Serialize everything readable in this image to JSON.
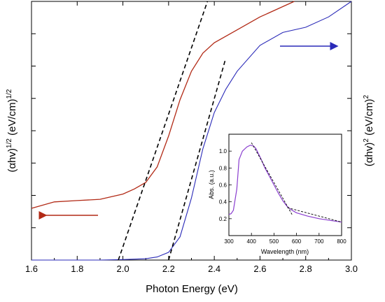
{
  "chart_data": [
    {
      "type": "line",
      "xlabel": "Photon Energy (eV)",
      "ylabel_left": "(αhv)",
      "ylabel_left_exp": "1/2",
      "ylabel_left_unit": "(eV/cm)",
      "ylabel_left_unit_exp": "1/2",
      "ylabel_right": "(αhv)",
      "ylabel_right_exp": "2",
      "ylabel_right_unit": "(eV/cm)",
      "ylabel_right_unit_exp": "2",
      "xlim": [
        1.6,
        3.0
      ],
      "x_ticks": [
        "1.6",
        "1.8",
        "2.0",
        "2.2",
        "2.4",
        "2.6",
        "2.8",
        "3.0"
      ],
      "y_ticks_labeled": false,
      "grid": false,
      "series": [
        {
          "axis": "left",
          "color": "#b22a16",
          "arrow_direction": "left",
          "points": [
            [
              1.6,
              0.2
            ],
            [
              1.7,
              0.225
            ],
            [
              1.8,
              0.23
            ],
            [
              1.9,
              0.235
            ],
            [
              1.95,
              0.245
            ],
            [
              2.0,
              0.255
            ],
            [
              2.05,
              0.275
            ],
            [
              2.1,
              0.3
            ],
            [
              2.15,
              0.36
            ],
            [
              2.2,
              0.48
            ],
            [
              2.25,
              0.62
            ],
            [
              2.3,
              0.73
            ],
            [
              2.35,
              0.8
            ],
            [
              2.4,
              0.84
            ],
            [
              2.5,
              0.89
            ],
            [
              2.6,
              0.94
            ],
            [
              2.7,
              0.98
            ],
            [
              2.75,
              1.0
            ]
          ]
        },
        {
          "axis": "right",
          "color": "#2a2ab8",
          "arrow_direction": "right",
          "points": [
            [
              1.6,
              0.0
            ],
            [
              1.9,
              0.0
            ],
            [
              2.0,
              0.002
            ],
            [
              2.1,
              0.005
            ],
            [
              2.15,
              0.012
            ],
            [
              2.2,
              0.03
            ],
            [
              2.25,
              0.09
            ],
            [
              2.3,
              0.24
            ],
            [
              2.35,
              0.43
            ],
            [
              2.4,
              0.57
            ],
            [
              2.45,
              0.66
            ],
            [
              2.5,
              0.73
            ],
            [
              2.6,
              0.83
            ],
            [
              2.7,
              0.88
            ],
            [
              2.8,
              0.9
            ],
            [
              2.9,
              0.94
            ],
            [
              3.0,
              1.0
            ]
          ]
        }
      ],
      "tangent_lines": [
        {
          "for": "left",
          "x": [
            1.98,
            2.37
          ],
          "y": [
            0.0,
            1.0
          ]
        },
        {
          "for": "right",
          "x": [
            2.2,
            2.45
          ],
          "y": [
            0.0,
            0.78
          ]
        }
      ],
      "x_intercepts": [
        2.0,
        2.2
      ]
    },
    {
      "type": "line",
      "inset": true,
      "xlabel": "Wavelength (nm)",
      "ylabel": "Abs. (a.u.)",
      "xlim": [
        300,
        800
      ],
      "ylim": [
        0.0,
        1.2
      ],
      "x_ticks": [
        "300",
        "400",
        "500",
        "600",
        "700",
        "800"
      ],
      "y_ticks": [
        "0.2",
        "0.4",
        "0.6",
        "0.8",
        "1.0"
      ],
      "grid": false,
      "series": [
        {
          "color": "#8a3ecf",
          "points": [
            [
              300,
              0.25
            ],
            [
              310,
              0.26
            ],
            [
              320,
              0.3
            ],
            [
              335,
              0.55
            ],
            [
              345,
              0.9
            ],
            [
              360,
              1.0
            ],
            [
              380,
              1.05
            ],
            [
              395,
              1.07
            ],
            [
              410,
              1.06
            ],
            [
              420,
              1.03
            ],
            [
              440,
              0.92
            ],
            [
              460,
              0.8
            ],
            [
              480,
              0.7
            ],
            [
              500,
              0.6
            ],
            [
              520,
              0.5
            ],
            [
              540,
              0.41
            ],
            [
              560,
              0.34
            ],
            [
              580,
              0.3
            ],
            [
              600,
              0.27
            ],
            [
              650,
              0.23
            ],
            [
              700,
              0.2
            ],
            [
              750,
              0.18
            ],
            [
              800,
              0.16
            ]
          ]
        }
      ],
      "tangent_lines": [
        {
          "x": [
            400,
            580
          ],
          "y": [
            1.1,
            0.25
          ]
        },
        {
          "x": [
            560,
            800
          ],
          "y": [
            0.33,
            0.16
          ]
        }
      ]
    }
  ]
}
